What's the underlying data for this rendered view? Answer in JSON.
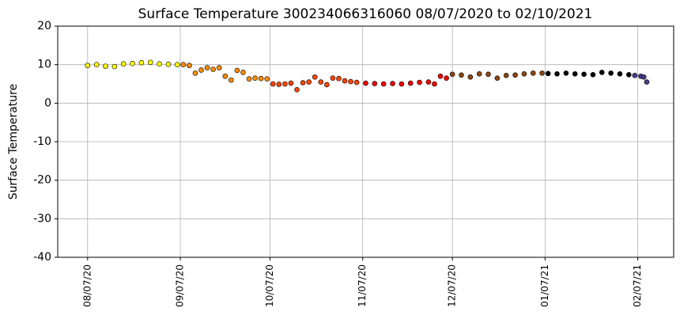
{
  "chart_data": {
    "type": "scatter",
    "title": "Surface Temperature 300234066316060  08/07/2020 to 02/10/2021",
    "y_label": "Surface Temperature",
    "xlim": [
      "07/28/20",
      "02/19/21"
    ],
    "xticks": [
      "08/07/20",
      "09/07/20",
      "10/07/20",
      "11/07/20",
      "12/07/20",
      "01/07/21",
      "02/07/21"
    ],
    "ylim": [
      -40,
      20
    ],
    "yticks": [
      -40,
      -30,
      -20,
      -10,
      0,
      10,
      20
    ],
    "grid": true,
    "series": [
      {
        "color": "#ffff00",
        "x": [
          "08/07/20",
          "08/10/20",
          "08/13/20",
          "08/16/20",
          "08/19/20",
          "08/22/20",
          "08/25/20",
          "08/28/20",
          "08/31/20",
          "09/03/20",
          "09/06/20"
        ],
        "values": [
          9.8,
          10.0,
          9.6,
          9.5,
          10.2,
          10.3,
          10.5,
          10.6,
          10.2,
          10.1,
          10.0
        ]
      },
      {
        "color": "#ff8c00",
        "x": [
          "09/08/20",
          "09/10/20",
          "09/12/20",
          "09/14/20",
          "09/16/20",
          "09/18/20",
          "09/20/20",
          "09/22/20",
          "09/24/20",
          "09/26/20",
          "09/28/20",
          "09/30/20",
          "10/02/20",
          "10/04/20",
          "10/06/20"
        ],
        "values": [
          10.0,
          9.8,
          7.8,
          8.6,
          9.2,
          8.8,
          9.2,
          7.0,
          6.0,
          8.5,
          8.0,
          6.3,
          6.5,
          6.4,
          6.3
        ]
      },
      {
        "color": "#ff4500",
        "x": [
          "10/08/20",
          "10/10/20",
          "10/12/20",
          "10/14/20",
          "10/16/20",
          "10/18/20",
          "10/20/20",
          "10/22/20",
          "10/24/20",
          "10/26/20",
          "10/28/20",
          "10/30/20",
          "11/01/20",
          "11/03/20",
          "11/05/20"
        ],
        "values": [
          5.0,
          4.9,
          5.0,
          5.2,
          3.5,
          5.3,
          5.5,
          6.8,
          5.5,
          4.8,
          6.5,
          6.4,
          5.8,
          5.6,
          5.4
        ]
      },
      {
        "color": "#ff0000",
        "x": [
          "11/08/20",
          "11/11/20",
          "11/14/20",
          "11/17/20",
          "11/20/20",
          "11/23/20",
          "11/26/20",
          "11/29/20",
          "12/01/20",
          "12/03/20",
          "12/05/20"
        ],
        "values": [
          5.2,
          5.1,
          5.0,
          5.1,
          5.0,
          5.2,
          5.4,
          5.5,
          5.0,
          7.0,
          6.5
        ]
      },
      {
        "color": "#8b4513",
        "x": [
          "12/07/20",
          "12/10/20",
          "12/13/20",
          "12/16/20",
          "12/19/20",
          "12/22/20",
          "12/25/20",
          "12/28/20",
          "12/31/20",
          "01/03/21",
          "01/06/21"
        ],
        "values": [
          7.5,
          7.3,
          6.8,
          7.6,
          7.5,
          6.5,
          7.2,
          7.3,
          7.6,
          7.8,
          7.8
        ]
      },
      {
        "color": "#000000",
        "x": [
          "01/08/21",
          "01/11/21",
          "01/14/21",
          "01/17/21",
          "01/20/21",
          "01/23/21",
          "01/26/21",
          "01/29/21",
          "02/01/21",
          "02/04/21"
        ],
        "values": [
          7.7,
          7.6,
          7.8,
          7.6,
          7.5,
          7.4,
          8.0,
          7.8,
          7.6,
          7.4
        ]
      },
      {
        "color": "#483d8b",
        "x": [
          "02/06/21",
          "02/08/21",
          "02/09/21",
          "02/10/21"
        ],
        "values": [
          7.2,
          7.0,
          6.8,
          5.5
        ]
      }
    ]
  }
}
